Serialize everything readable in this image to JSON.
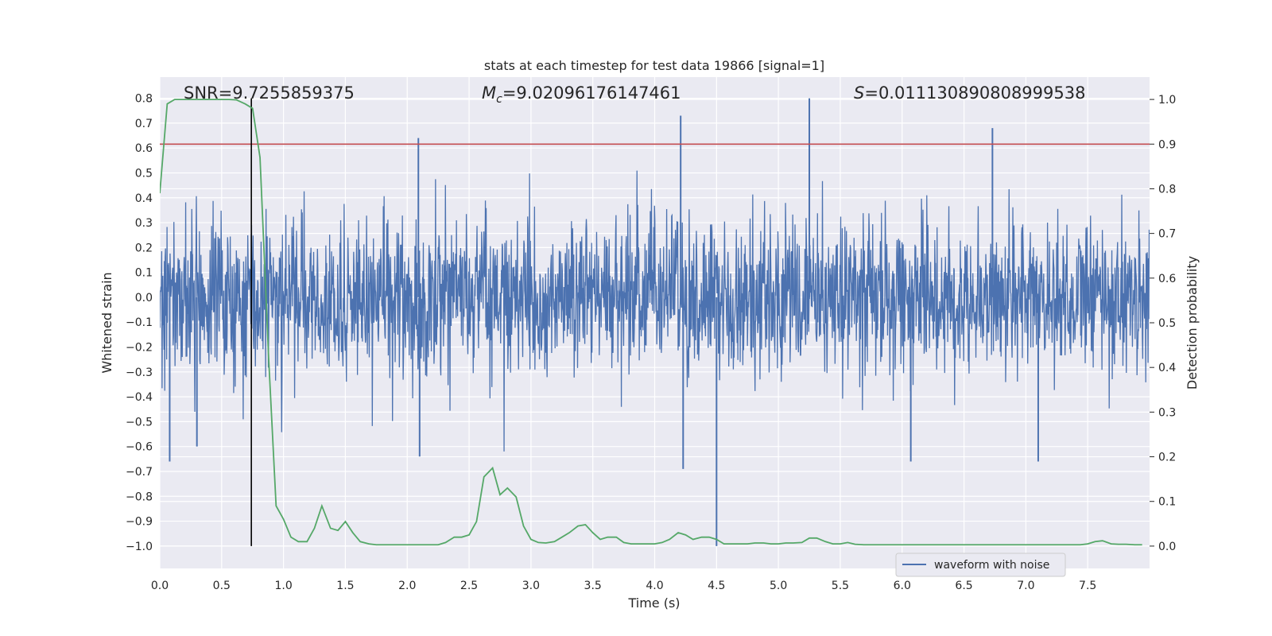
{
  "chart_data": {
    "type": "line",
    "title": "stats at each timestep for test data 19866 [signal=1]",
    "xlabel": "Time (s)",
    "ylabel_left": "Whitened strain",
    "ylabel_right": "Detection probability",
    "xlim": [
      0.0,
      8.0
    ],
    "ylim_left": [
      -1.09,
      0.885
    ],
    "ylim_right": [
      -0.05,
      1.05
    ],
    "x_ticks": [
      0.0,
      0.5,
      1.0,
      1.5,
      2.0,
      2.5,
      3.0,
      3.5,
      4.0,
      4.5,
      5.0,
      5.5,
      6.0,
      6.5,
      7.0,
      7.5
    ],
    "x_tick_labels": [
      "0.0",
      "0.5",
      "1.0",
      "1.5",
      "2.0",
      "2.5",
      "3.0",
      "3.5",
      "4.0",
      "4.5",
      "5.0",
      "5.5",
      "6.0",
      "6.5",
      "7.0",
      "7.5"
    ],
    "y_left_ticks": [
      0.8,
      0.7,
      0.6,
      0.5,
      0.4,
      0.3,
      0.2,
      0.1,
      0.0,
      -0.1,
      -0.2,
      -0.3,
      -0.4,
      -0.5,
      -0.6,
      -0.7,
      -0.8,
      -0.9,
      -1.0
    ],
    "y_left_tick_labels": [
      "0.8",
      "0.7",
      "0.6",
      "0.5",
      "0.4",
      "0.3",
      "0.2",
      "0.1",
      "0.0",
      "−0.1",
      "−0.2",
      "−0.3",
      "−0.4",
      "−0.5",
      "−0.6",
      "−0.7",
      "−0.8",
      "−0.9",
      "−1.0"
    ],
    "y_right_ticks": [
      1.0,
      0.9,
      0.8,
      0.7,
      0.6,
      0.5,
      0.4,
      0.3,
      0.2,
      0.1,
      0.0
    ],
    "y_right_tick_labels": [
      "1.0",
      "0.9",
      "0.8",
      "0.7",
      "0.6",
      "0.5",
      "0.4",
      "0.3",
      "0.2",
      "0.1",
      "0.0"
    ],
    "annotations": {
      "snr": "SNR=9.7255859375",
      "mc_symbol": "M",
      "mc_sub": "c",
      "mc_value": "=9.02096176147461",
      "s_symbol": "S",
      "s_value": "=0.011130890808999538"
    },
    "threshold": {
      "axis": "right",
      "value": 0.9,
      "color": "#c44e52"
    },
    "event_marker": {
      "x": 0.74,
      "y_from": -1.0,
      "y_to": 0.8,
      "color": "#000000"
    },
    "series": [
      {
        "name": "waveform with noise",
        "axis": "left",
        "color": "#4c72b0",
        "description": "dense whitened strain noise trace",
        "envelope_typical": 0.45,
        "notable_peaks": [
          {
            "x": 0.08,
            "y": -0.66
          },
          {
            "x": 0.3,
            "y": -0.6
          },
          {
            "x": 2.09,
            "y": 0.64
          },
          {
            "x": 2.1,
            "y": -0.64
          },
          {
            "x": 4.21,
            "y": 0.73
          },
          {
            "x": 4.23,
            "y": -0.69
          },
          {
            "x": 4.5,
            "y": -1.0
          },
          {
            "x": 5.25,
            "y": 0.8
          },
          {
            "x": 6.07,
            "y": -0.66
          },
          {
            "x": 6.73,
            "y": 0.68
          },
          {
            "x": 7.1,
            "y": -0.66
          }
        ]
      },
      {
        "name": "detection probability",
        "axis": "right",
        "color": "#55a868",
        "x": [
          0.0,
          0.06,
          0.12,
          0.19,
          0.25,
          0.31,
          0.38,
          0.44,
          0.5,
          0.56,
          0.62,
          0.69,
          0.75,
          0.81,
          0.88,
          0.94,
          1.0,
          1.06,
          1.12,
          1.19,
          1.25,
          1.31,
          1.38,
          1.44,
          1.5,
          1.56,
          1.62,
          1.69,
          1.75,
          1.81,
          1.88,
          1.94,
          2.0,
          2.06,
          2.12,
          2.19,
          2.25,
          2.31,
          2.38,
          2.44,
          2.5,
          2.56,
          2.62,
          2.69,
          2.75,
          2.81,
          2.88,
          2.94,
          3.0,
          3.06,
          3.12,
          3.19,
          3.25,
          3.31,
          3.38,
          3.44,
          3.5,
          3.56,
          3.62,
          3.69,
          3.75,
          3.81,
          3.88,
          3.94,
          4.0,
          4.06,
          4.12,
          4.19,
          4.25,
          4.31,
          4.38,
          4.44,
          4.5,
          4.56,
          4.62,
          4.69,
          4.75,
          4.81,
          4.88,
          4.94,
          5.0,
          5.06,
          5.12,
          5.19,
          5.25,
          5.31,
          5.38,
          5.44,
          5.5,
          5.56,
          5.62,
          5.69,
          5.75,
          5.81,
          5.88,
          5.94,
          6.0,
          6.06,
          6.12,
          6.19,
          6.25,
          6.31,
          6.38,
          6.44,
          6.5,
          6.56,
          6.62,
          6.69,
          6.75,
          6.81,
          6.88,
          6.94,
          7.0,
          7.06,
          7.12,
          7.19,
          7.25,
          7.31,
          7.38,
          7.44,
          7.5,
          7.56,
          7.62,
          7.69,
          7.75,
          7.81,
          7.88,
          7.94
        ],
        "y": [
          0.79,
          0.99,
          1.0,
          1.0,
          1.0,
          1.0,
          1.0,
          1.0,
          1.0,
          1.0,
          0.999,
          0.99,
          0.98,
          0.87,
          0.42,
          0.09,
          0.06,
          0.02,
          0.01,
          0.01,
          0.04,
          0.09,
          0.04,
          0.035,
          0.055,
          0.03,
          0.01,
          0.005,
          0.003,
          0.003,
          0.003,
          0.003,
          0.003,
          0.003,
          0.003,
          0.003,
          0.003,
          0.008,
          0.02,
          0.02,
          0.025,
          0.055,
          0.155,
          0.175,
          0.115,
          0.13,
          0.11,
          0.045,
          0.015,
          0.008,
          0.007,
          0.01,
          0.02,
          0.03,
          0.045,
          0.048,
          0.03,
          0.015,
          0.02,
          0.02,
          0.008,
          0.005,
          0.005,
          0.005,
          0.005,
          0.008,
          0.015,
          0.03,
          0.025,
          0.015,
          0.02,
          0.02,
          0.015,
          0.005,
          0.005,
          0.005,
          0.005,
          0.007,
          0.007,
          0.005,
          0.005,
          0.007,
          0.007,
          0.008,
          0.018,
          0.018,
          0.01,
          0.005,
          0.005,
          0.008,
          0.004,
          0.003,
          0.003,
          0.003,
          0.003,
          0.003,
          0.003,
          0.003,
          0.003,
          0.003,
          0.003,
          0.003,
          0.003,
          0.003,
          0.003,
          0.003,
          0.003,
          0.003,
          0.003,
          0.003,
          0.003,
          0.003,
          0.003,
          0.003,
          0.003,
          0.003,
          0.003,
          0.003,
          0.003,
          0.003,
          0.005,
          0.01,
          0.012,
          0.005,
          0.004,
          0.004,
          0.003,
          0.003
        ]
      }
    ],
    "legend": {
      "entries": [
        "waveform with noise"
      ],
      "location": "lower-right"
    },
    "grid": true,
    "colors": {
      "background": "#eaeaf2",
      "grid": "#ffffff",
      "waveform": "#4c72b0",
      "probability": "#55a868",
      "threshold": "#c44e52"
    }
  }
}
